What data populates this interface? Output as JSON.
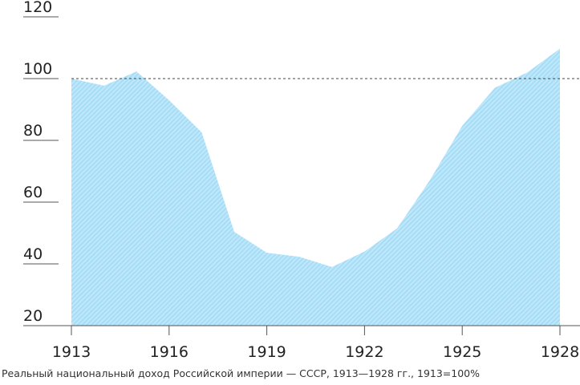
{
  "chart_data": {
    "type": "area",
    "title": "",
    "xlabel": "",
    "ylabel": "",
    "x": [
      1913,
      1914,
      1915,
      1916,
      1917,
      1918,
      1919,
      1920,
      1921,
      1922,
      1923,
      1924,
      1925,
      1926,
      1927,
      1928
    ],
    "values": [
      100,
      97.7,
      102.3,
      93,
      82.6,
      50.4,
      43.6,
      42.3,
      39,
      44,
      51.5,
      67,
      84.7,
      97,
      102,
      109.7
    ],
    "xticks": [
      "1913",
      "1916",
      "1919",
      "1922",
      "1925",
      "1928"
    ],
    "yticks": [
      "20",
      "40",
      "60",
      "80",
      "100",
      "120"
    ],
    "ylim": [
      20,
      120
    ],
    "xlim": [
      1913,
      1928
    ],
    "reference_line": 100,
    "grid": false,
    "fill_color": "#aadff7",
    "caption": "Реальный национальный доход Российской империи — СССР, 1913—1928 гг., 1913=100%"
  }
}
